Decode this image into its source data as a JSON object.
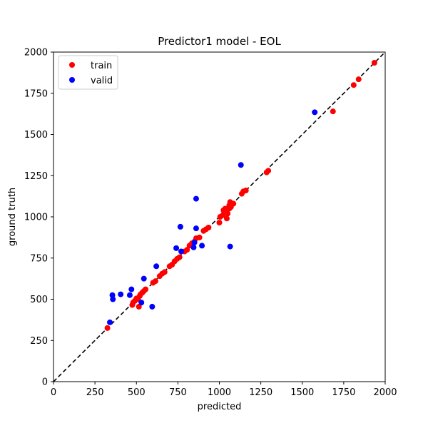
{
  "chart_data": {
    "type": "scatter",
    "title": "Predictor1 model - EOL",
    "xlabel": "predicted",
    "ylabel": "ground truth",
    "xlim": [
      0,
      2000
    ],
    "ylim": [
      0,
      2000
    ],
    "xticks": [
      0,
      250,
      500,
      750,
      1000,
      1250,
      1500,
      1750,
      2000
    ],
    "yticks": [
      0,
      250,
      500,
      750,
      1000,
      1250,
      1500,
      1750,
      2000
    ],
    "grid": false,
    "legend_position": "top-left",
    "reference_line": {
      "style": "dashed",
      "color": "#000000",
      "from": [
        0,
        0
      ],
      "to": [
        2000,
        2000
      ]
    },
    "series": [
      {
        "name": "train",
        "color": "#ff0000",
        "points": [
          [
            325,
            325
          ],
          [
            475,
            465
          ],
          [
            480,
            480
          ],
          [
            490,
            490
          ],
          [
            500,
            505
          ],
          [
            510,
            500
          ],
          [
            515,
            455
          ],
          [
            520,
            520
          ],
          [
            525,
            530
          ],
          [
            535,
            540
          ],
          [
            545,
            550
          ],
          [
            555,
            560
          ],
          [
            600,
            600
          ],
          [
            615,
            610
          ],
          [
            640,
            640
          ],
          [
            655,
            655
          ],
          [
            670,
            665
          ],
          [
            700,
            700
          ],
          [
            715,
            710
          ],
          [
            730,
            730
          ],
          [
            745,
            745
          ],
          [
            760,
            755
          ],
          [
            790,
            790
          ],
          [
            805,
            800
          ],
          [
            820,
            825
          ],
          [
            835,
            840
          ],
          [
            850,
            850
          ],
          [
            860,
            870
          ],
          [
            880,
            875
          ],
          [
            905,
            915
          ],
          [
            920,
            925
          ],
          [
            935,
            935
          ],
          [
            1000,
            965
          ],
          [
            1005,
            1000
          ],
          [
            1020,
            1010
          ],
          [
            1025,
            1040
          ],
          [
            1035,
            1050
          ],
          [
            1045,
            990
          ],
          [
            1050,
            1020
          ],
          [
            1060,
            1050
          ],
          [
            1060,
            1070
          ],
          [
            1065,
            1090
          ],
          [
            1070,
            1060
          ],
          [
            1085,
            1080
          ],
          [
            1135,
            1140
          ],
          [
            1145,
            1155
          ],
          [
            1160,
            1160
          ],
          [
            1285,
            1270
          ],
          [
            1295,
            1280
          ],
          [
            1685,
            1640
          ],
          [
            1810,
            1800
          ],
          [
            1840,
            1835
          ],
          [
            1935,
            1935
          ]
        ]
      },
      {
        "name": "valid",
        "color": "#0000ff",
        "points": [
          [
            340,
            360
          ],
          [
            355,
            525
          ],
          [
            358,
            500
          ],
          [
            405,
            530
          ],
          [
            460,
            525
          ],
          [
            470,
            560
          ],
          [
            530,
            480
          ],
          [
            545,
            625
          ],
          [
            595,
            455
          ],
          [
            620,
            700
          ],
          [
            740,
            810
          ],
          [
            765,
            940
          ],
          [
            770,
            790
          ],
          [
            845,
            815
          ],
          [
            850,
            845
          ],
          [
            860,
            1110
          ],
          [
            860,
            930
          ],
          [
            895,
            825
          ],
          [
            1065,
            820
          ],
          [
            1130,
            1315
          ],
          [
            1575,
            1635
          ]
        ]
      }
    ]
  }
}
